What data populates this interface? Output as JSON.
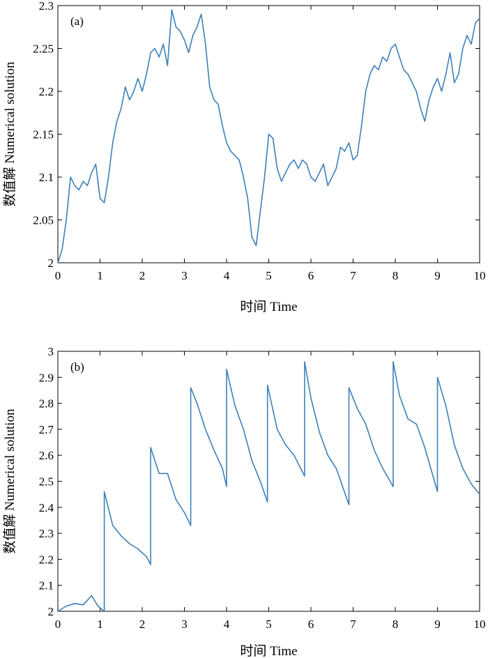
{
  "chart_data": [
    {
      "type": "line",
      "panel_label": "(a)",
      "xlabel": "时间 Time",
      "ylabel": "数值解 Numerical solution",
      "xlim": [
        0,
        10
      ],
      "ylim": [
        2,
        2.3
      ],
      "xticks": [
        "0",
        "1",
        "2",
        "3",
        "4",
        "5",
        "6",
        "7",
        "8",
        "9",
        "10"
      ],
      "yticks": [
        "2",
        "2.05",
        "2.1",
        "2.15",
        "2.2",
        "2.25",
        "2.3"
      ],
      "grid": false,
      "color": "#3d7fb9",
      "series": [
        {
          "x": [
            0,
            0.1,
            0.2,
            0.3,
            0.4,
            0.5,
            0.6,
            0.7,
            0.8,
            0.9,
            1.0,
            1.1,
            1.2,
            1.3,
            1.4,
            1.5,
            1.6,
            1.7,
            1.8,
            1.9,
            2.0,
            2.1,
            2.2,
            2.3,
            2.4,
            2.5,
            2.6,
            2.7,
            2.8,
            2.9,
            3.0,
            3.1,
            3.2,
            3.3,
            3.4,
            3.5,
            3.6,
            3.7,
            3.8,
            3.9,
            4.0,
            4.1,
            4.2,
            4.3,
            4.4,
            4.5,
            4.6,
            4.7,
            4.8,
            4.9,
            5.0,
            5.1,
            5.2,
            5.3,
            5.4,
            5.5,
            5.6,
            5.7,
            5.8,
            5.9,
            6.0,
            6.1,
            6.2,
            6.3,
            6.4,
            6.5,
            6.6,
            6.7,
            6.8,
            6.9,
            7.0,
            7.1,
            7.2,
            7.3,
            7.4,
            7.5,
            7.6,
            7.7,
            7.8,
            7.9,
            8.0,
            8.1,
            8.2,
            8.3,
            8.4,
            8.5,
            8.6,
            8.7,
            8.8,
            8.9,
            9.0,
            9.1,
            9.2,
            9.3,
            9.4,
            9.5,
            9.6,
            9.7,
            9.8,
            9.9,
            10.0
          ],
          "y": [
            2.0,
            2.015,
            2.05,
            2.1,
            2.09,
            2.085,
            2.095,
            2.09,
            2.105,
            2.115,
            2.075,
            2.07,
            2.1,
            2.14,
            2.165,
            2.18,
            2.205,
            2.19,
            2.2,
            2.215,
            2.2,
            2.22,
            2.245,
            2.25,
            2.24,
            2.255,
            2.23,
            2.295,
            2.275,
            2.27,
            2.26,
            2.245,
            2.265,
            2.275,
            2.29,
            2.255,
            2.205,
            2.19,
            2.185,
            2.16,
            2.14,
            2.13,
            2.125,
            2.12,
            2.1,
            2.075,
            2.03,
            2.02,
            2.06,
            2.1,
            2.15,
            2.145,
            2.11,
            2.095,
            2.105,
            2.115,
            2.12,
            2.11,
            2.12,
            2.115,
            2.1,
            2.095,
            2.105,
            2.115,
            2.09,
            2.1,
            2.11,
            2.135,
            2.13,
            2.14,
            2.12,
            2.125,
            2.16,
            2.2,
            2.22,
            2.23,
            2.225,
            2.24,
            2.235,
            2.25,
            2.255,
            2.24,
            2.225,
            2.22,
            2.21,
            2.2,
            2.18,
            2.165,
            2.19,
            2.205,
            2.215,
            2.2,
            2.22,
            2.245,
            2.21,
            2.22,
            2.25,
            2.265,
            2.255,
            2.28,
            2.285
          ]
        }
      ]
    },
    {
      "type": "line",
      "panel_label": "(b)",
      "xlabel": "时间 Time",
      "ylabel": "数值解 Numerical solution",
      "xlim": [
        0,
        10
      ],
      "ylim": [
        2,
        3
      ],
      "xticks": [
        "0",
        "1",
        "2",
        "3",
        "4",
        "5",
        "6",
        "7",
        "8",
        "9",
        "10"
      ],
      "yticks": [
        "2",
        "2.1",
        "2.2",
        "2.3",
        "2.4",
        "2.5",
        "2.6",
        "2.7",
        "2.8",
        "2.9",
        "3"
      ],
      "grid": false,
      "color": "#3d7fb9",
      "series": [
        {
          "x": [
            0,
            0.2,
            0.4,
            0.6,
            0.8,
            0.95,
            1.1,
            1.1,
            1.3,
            1.5,
            1.7,
            1.9,
            2.1,
            2.2,
            2.2,
            2.4,
            2.6,
            2.8,
            3.0,
            3.15,
            3.15,
            3.3,
            3.5,
            3.7,
            3.9,
            4.0,
            4.0,
            4.2,
            4.4,
            4.6,
            4.8,
            4.97,
            4.97,
            5.2,
            5.4,
            5.6,
            5.85,
            5.85,
            6.0,
            6.2,
            6.4,
            6.6,
            6.9,
            6.9,
            7.1,
            7.3,
            7.5,
            7.7,
            7.95,
            7.95,
            8.1,
            8.3,
            8.5,
            8.7,
            9.0,
            9.0,
            9.2,
            9.4,
            9.6,
            9.8,
            10.0
          ],
          "y": [
            2.0,
            2.02,
            2.03,
            2.025,
            2.06,
            2.02,
            2.0,
            2.46,
            2.33,
            2.29,
            2.26,
            2.24,
            2.21,
            2.18,
            2.63,
            2.53,
            2.53,
            2.43,
            2.38,
            2.33,
            2.86,
            2.8,
            2.7,
            2.62,
            2.55,
            2.48,
            2.93,
            2.79,
            2.7,
            2.58,
            2.5,
            2.42,
            2.87,
            2.7,
            2.64,
            2.6,
            2.52,
            2.96,
            2.82,
            2.69,
            2.6,
            2.55,
            2.41,
            2.86,
            2.78,
            2.72,
            2.62,
            2.55,
            2.48,
            2.96,
            2.83,
            2.74,
            2.72,
            2.63,
            2.46,
            2.9,
            2.79,
            2.64,
            2.55,
            2.49,
            2.45
          ]
        }
      ]
    }
  ]
}
